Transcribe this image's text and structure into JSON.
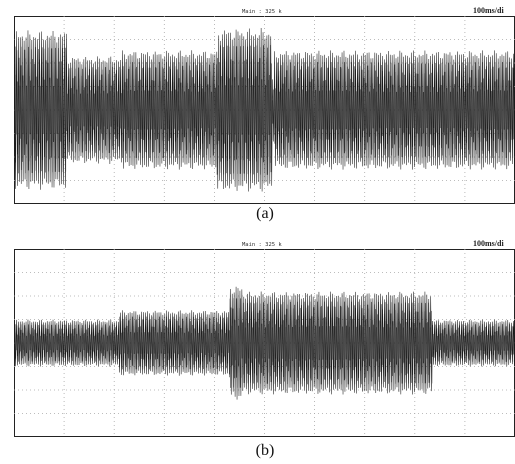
{
  "chart_data": [
    {
      "type": "line",
      "panel": "(a)",
      "header_center": "Main : 325 k",
      "header_right": "100ms/di",
      "grid": true,
      "x_divisions": 10,
      "y_divisions": 8,
      "series": [
        {
          "envelope_div": [
            [
              0.0,
              3.4
            ],
            [
              1.05,
              3.4
            ],
            [
              1.05,
              2.3
            ],
            [
              2.15,
              2.3
            ],
            [
              2.15,
              2.55
            ],
            [
              4.05,
              2.55
            ],
            [
              4.05,
              3.5
            ],
            [
              5.15,
              3.5
            ],
            [
              5.15,
              1.35
            ],
            [
              5.2,
              1.35
            ],
            [
              5.2,
              2.55
            ],
            [
              10.0,
              2.55
            ]
          ]
        }
      ]
    },
    {
      "type": "line",
      "panel": "(b)",
      "header_center": "Main : 325 k",
      "header_right": "100ms/di",
      "grid": true,
      "x_divisions": 10,
      "y_divisions": 8,
      "series": [
        {
          "envelope_div": [
            [
              0.0,
              1.0
            ],
            [
              2.1,
              1.0
            ],
            [
              2.1,
              1.4
            ],
            [
              4.3,
              1.4
            ],
            [
              4.3,
              2.45
            ],
            [
              4.55,
              2.55
            ],
            [
              4.55,
              2.2
            ],
            [
              5.7,
              2.2
            ],
            [
              8.35,
              2.2
            ],
            [
              8.35,
              1.0
            ],
            [
              10.0,
              1.0
            ]
          ]
        }
      ]
    }
  ],
  "captions": {
    "a": "(a)",
    "b": "(b)"
  },
  "colors": {
    "trace": "#1a1a1a",
    "grid": "#a8a8a8",
    "frame": "#222222"
  }
}
